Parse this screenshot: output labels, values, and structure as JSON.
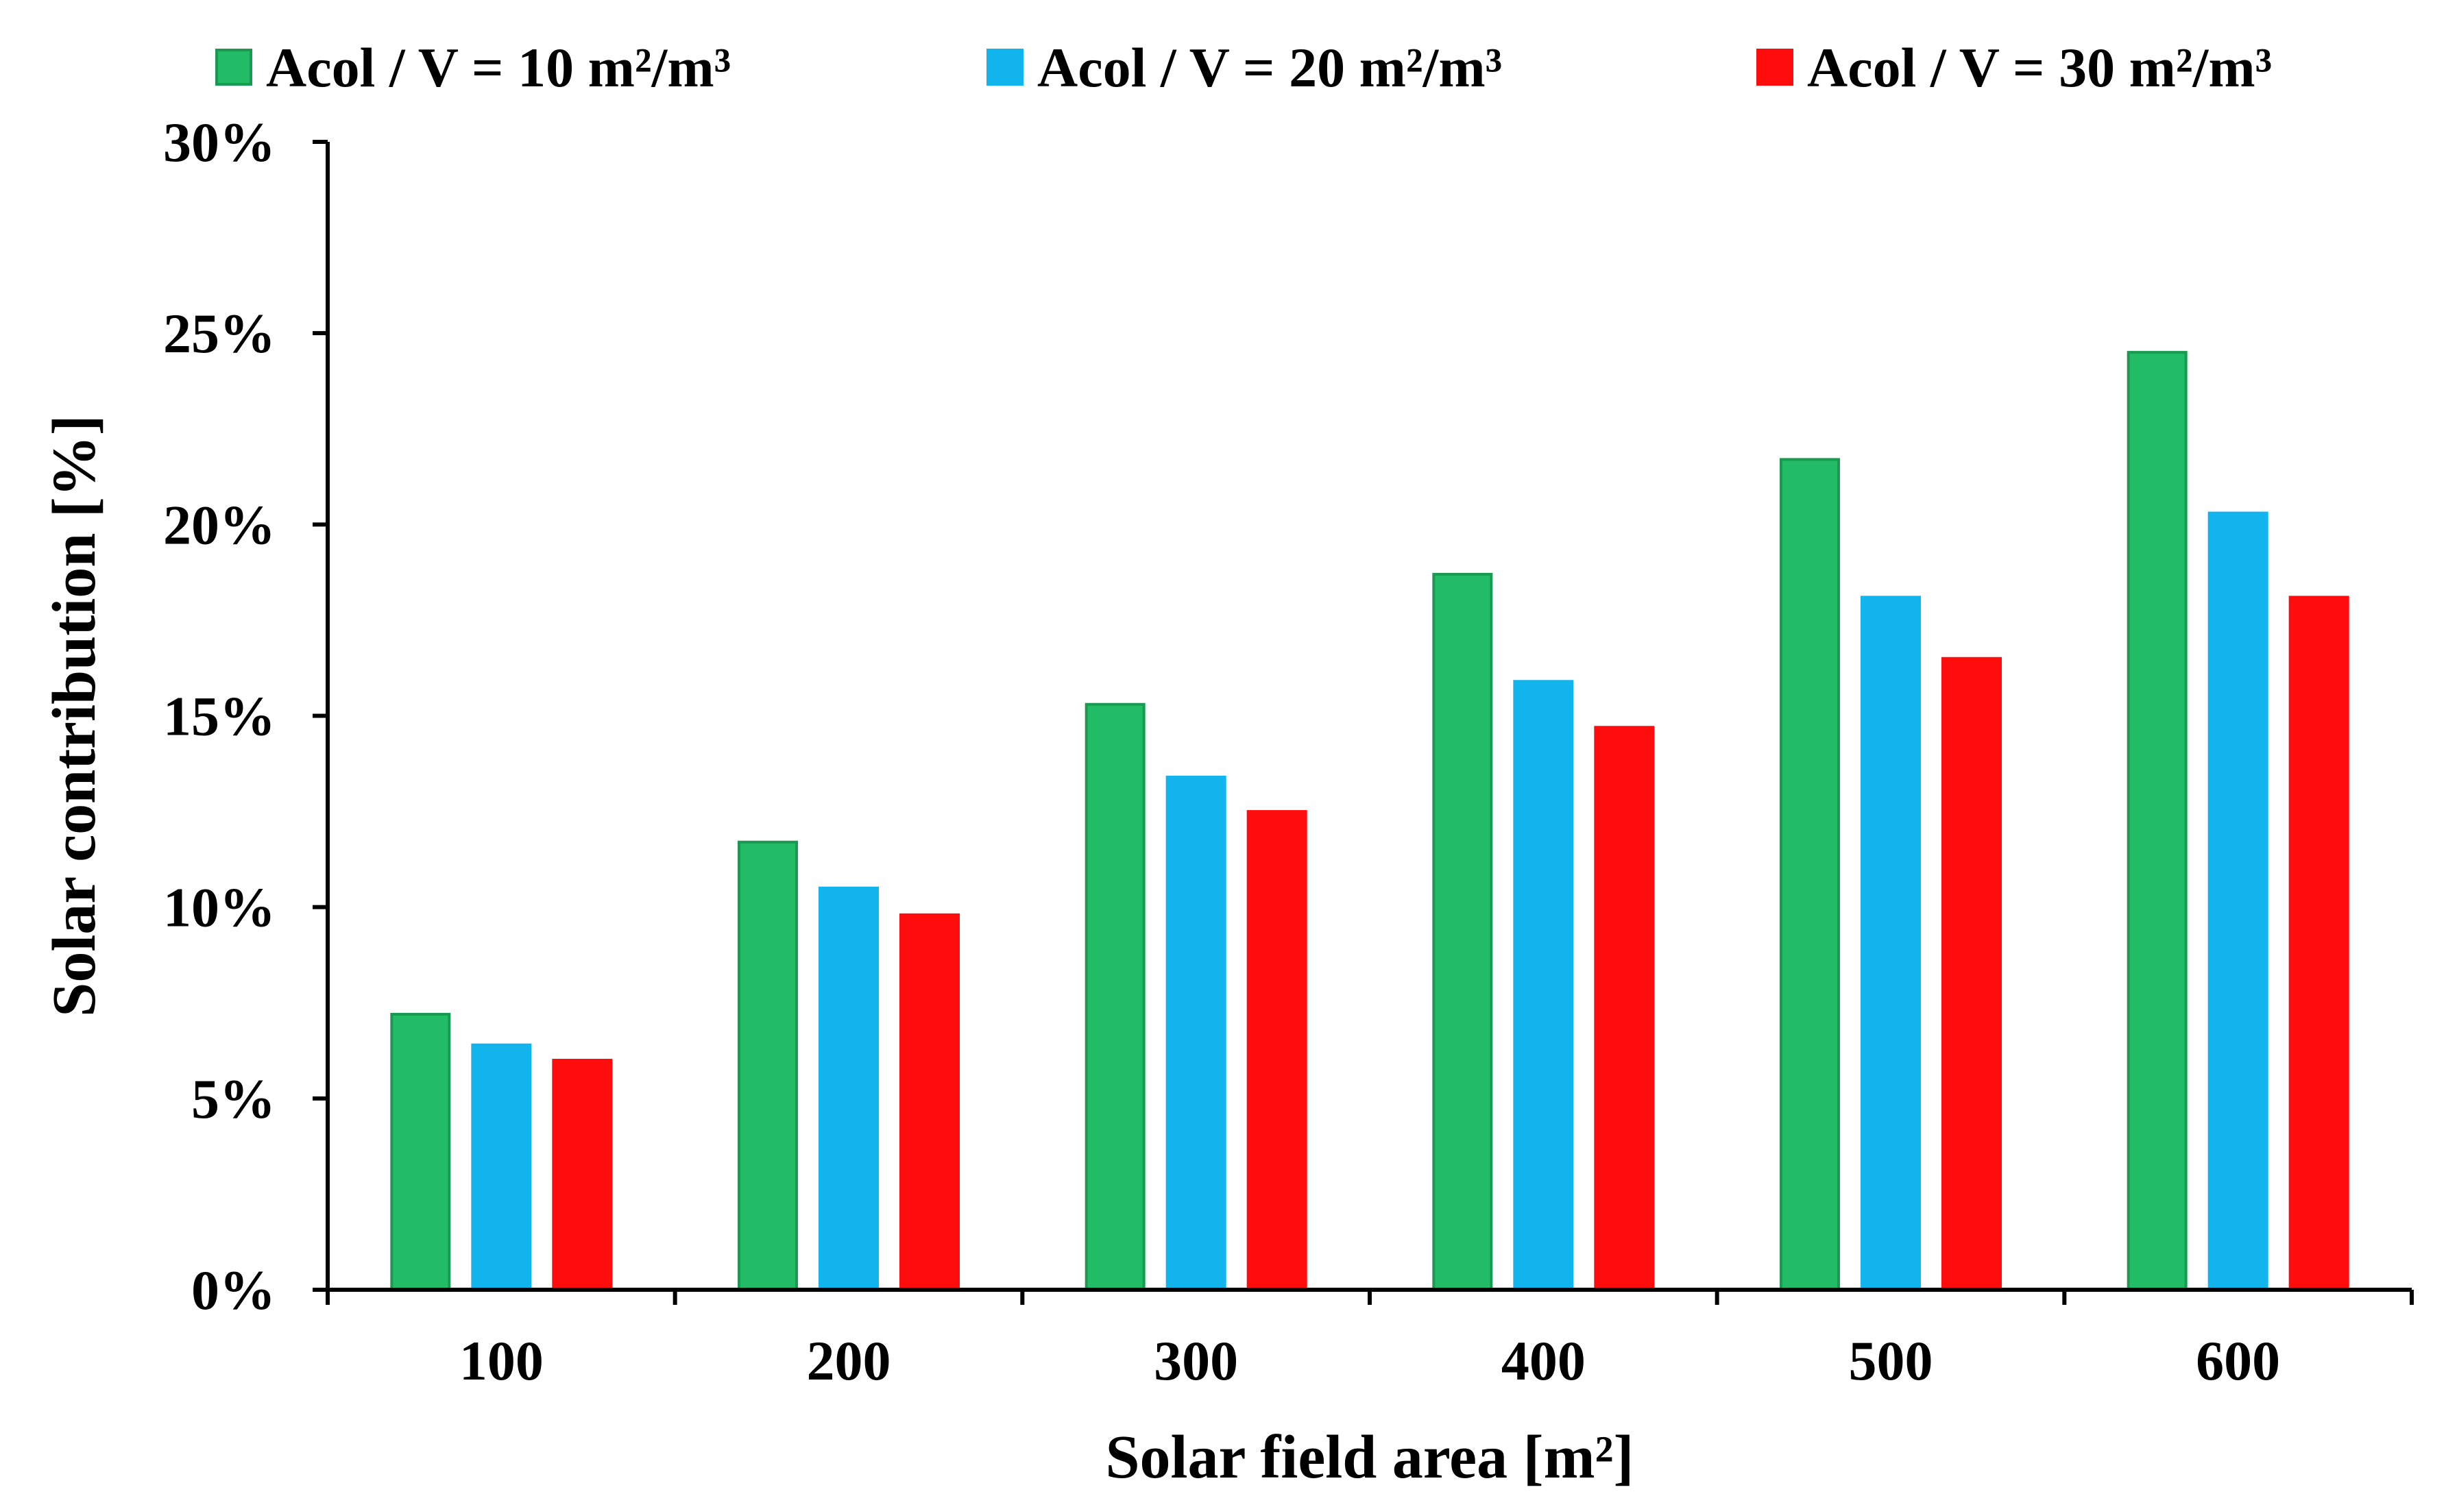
{
  "chart_data": {
    "type": "bar",
    "title": "",
    "xlabel": "Solar field area [m²]",
    "ylabel": "Solar contribution [%]",
    "categories": [
      "100",
      "200",
      "300",
      "400",
      "500",
      "600"
    ],
    "ylim": [
      0,
      30
    ],
    "yticks": [
      0,
      5,
      10,
      15,
      20,
      25,
      30
    ],
    "ytick_labels": [
      "0%",
      "5%",
      "10%",
      "15%",
      "20%",
      "25%",
      "30%"
    ],
    "grid": false,
    "legend_position": "top",
    "series": [
      {
        "name": "Acol / V = 10 m²/m³",
        "color": "#22BB66",
        "edge_color": "#1A9A50",
        "values": [
          7.2,
          11.7,
          15.3,
          18.7,
          21.7,
          24.5
        ]
      },
      {
        "name": "Acol / V = 20 m²/m³",
        "color": "#12B4EE",
        "edge_color": "#12B4EE",
        "values": [
          6.4,
          10.5,
          13.4,
          15.9,
          18.1,
          20.3
        ]
      },
      {
        "name": "Acol / V = 30 m²/m³",
        "color": "#FF0D0D",
        "edge_color": "#FF0D0D",
        "values": [
          6.0,
          9.8,
          12.5,
          14.7,
          16.5,
          18.1
        ]
      }
    ]
  }
}
